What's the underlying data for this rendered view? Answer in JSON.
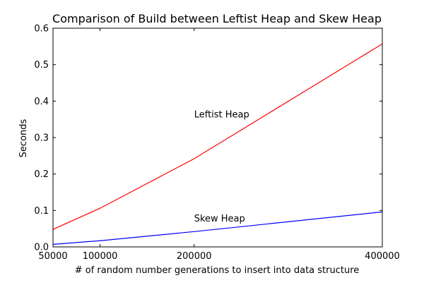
{
  "chart_data": {
    "type": "line",
    "title": "Comparison of Build between Leftist Heap and Skew Heap",
    "xlabel": "# of random number generations to insert into data structure",
    "ylabel": "Seconds",
    "xlim": [
      50000,
      400000
    ],
    "ylim": [
      0,
      0.6
    ],
    "xticks": [
      50000,
      100000,
      200000,
      400000
    ],
    "xtick_labels": [
      "50000",
      "100000",
      "200000",
      "400000"
    ],
    "yticks": [
      0,
      0.1,
      0.2,
      0.3,
      0.4,
      0.5,
      0.6
    ],
    "ytick_labels": [
      "0.0",
      "0.1",
      "0.2",
      "0.3",
      "0.4",
      "0.5",
      "0.6"
    ],
    "grid": false,
    "legend": "none",
    "series": [
      {
        "name": "Leftist Heap",
        "color": "#ff0000",
        "x": [
          50000,
          100000,
          200000,
          400000
        ],
        "y": [
          0.048,
          0.106,
          0.242,
          0.557
        ]
      },
      {
        "name": "Skew Heap",
        "color": "#0000ff",
        "x": [
          50000,
          100000,
          200000,
          400000
        ],
        "y": [
          0.007,
          0.017,
          0.042,
          0.096
        ]
      }
    ],
    "annotations": [
      {
        "text": "Leftist Heap",
        "x": 200000,
        "y": 0.355
      },
      {
        "text": "Skew Heap",
        "x": 200000,
        "y": 0.07
      }
    ]
  }
}
